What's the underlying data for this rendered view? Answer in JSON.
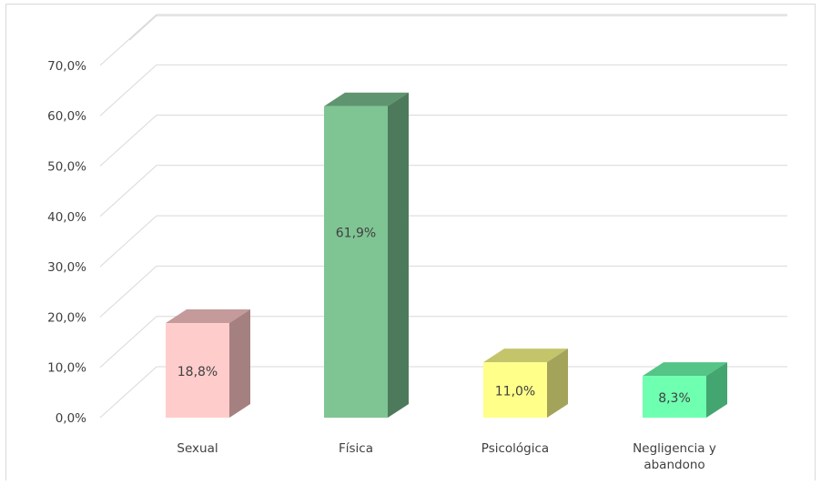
{
  "chart_data": {
    "type": "bar",
    "style": "3d-column",
    "categories": [
      "Sexual",
      "Física",
      "Psicológica",
      "Negligencia y abandono"
    ],
    "category_lines": [
      [
        "Sexual"
      ],
      [
        "Física"
      ],
      [
        "Psicológica"
      ],
      [
        "Negligencia y",
        "abandono"
      ]
    ],
    "values": [
      18.8,
      61.9,
      11.0,
      8.3
    ],
    "data_labels": [
      "18,8%",
      "61,9%",
      "11,0%",
      "8,3%"
    ],
    "colors": [
      {
        "front": "#ffcccc",
        "side": "#a58080",
        "top": "#c59a9a"
      },
      {
        "front": "#7fc594",
        "side": "#4d7a5b",
        "top": "#5e9470"
      },
      {
        "front": "#ffff8a",
        "side": "#a3a35a",
        "top": "#c4c46b"
      },
      {
        "front": "#6fffb1",
        "side": "#43a56f",
        "top": "#55c487"
      }
    ],
    "y_ticks": [
      "0,0%",
      "10,0%",
      "20,0%",
      "30,0%",
      "40,0%",
      "50,0%",
      "60,0%",
      "70,0%"
    ],
    "ylim": [
      0,
      75
    ],
    "grid": true,
    "title": "",
    "xlabel": "",
    "ylabel": ""
  }
}
